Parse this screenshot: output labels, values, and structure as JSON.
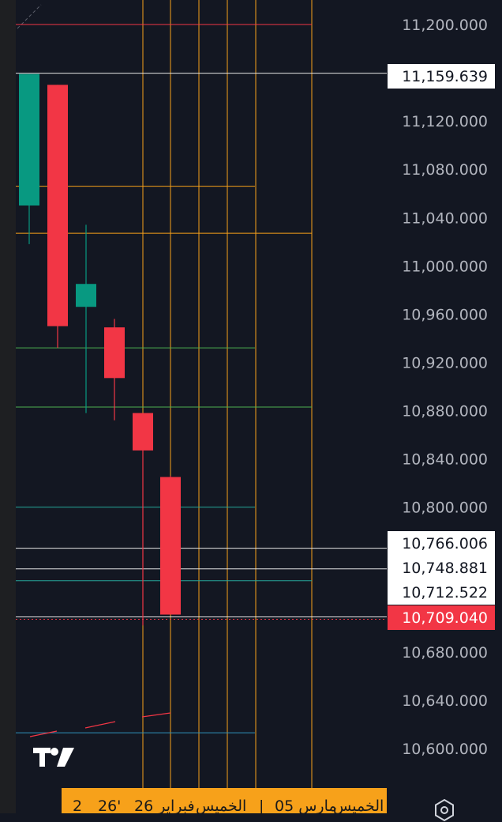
{
  "colors": {
    "background": "#131722",
    "up": "#089981",
    "down": "#f23645",
    "axis_text": "#b2b5be",
    "line_orange": "#f7a11a",
    "line_white": "#e6e6e6",
    "line_red": "#f23645",
    "line_green": "#4caf50",
    "line_teal": "#26a69a",
    "line_blue": "#2f8fb8",
    "badge_white_bg": "#ffffff",
    "badge_white_text": "#131722",
    "badge_red_bg": "#f23645",
    "badge_red_text": "#ffffff"
  },
  "chart_data": {
    "type": "candlestick",
    "y_range": [
      10580,
      11213
    ],
    "y_ticks": [
      "11,200.000",
      "11,120.000",
      "11,080.000",
      "11,040.000",
      "11,000.000",
      "10,960.000",
      "10,920.000",
      "10,880.000",
      "10,840.000",
      "10,800.000",
      "10,680.000",
      "10,640.000",
      "10,600.000"
    ],
    "candles": [
      {
        "open": 11050,
        "high": 11159,
        "low": 11018,
        "close": 11159
      },
      {
        "open": 11150,
        "high": 11150,
        "low": 10932,
        "close": 10950
      },
      {
        "open": 10966,
        "high": 11034,
        "low": 10878,
        "close": 10985
      },
      {
        "open": 10949,
        "high": 10956,
        "low": 10872,
        "close": 10907
      },
      {
        "open": 10878,
        "high": 10878,
        "low": 10702,
        "close": 10847
      },
      {
        "open": 10825,
        "high": 10826,
        "low": 10711,
        "close": 10711
      }
    ],
    "price_badges": [
      {
        "label": "11,159.639",
        "value": 11159.639,
        "style": "white"
      },
      {
        "label": "10,766.006",
        "value": 10766.006,
        "style": "white"
      },
      {
        "label": "10,748.881",
        "value": 10748.881,
        "style": "white"
      },
      {
        "label": "10,712.522",
        "value": 10712.522,
        "style": "white"
      },
      {
        "label": "10,709.040",
        "value": 10709.04,
        "style": "red"
      }
    ],
    "horizontal_lines": [
      {
        "value": 11200,
        "color": "red",
        "extent": "mid"
      },
      {
        "value": 11159.639,
        "color": "white",
        "extent": "full"
      },
      {
        "value": 11066,
        "color": "orange",
        "extent": "short"
      },
      {
        "value": 11027,
        "color": "orange",
        "extent": "mid"
      },
      {
        "value": 10932,
        "color": "green",
        "extent": "short"
      },
      {
        "value": 10883,
        "color": "green",
        "extent": "mid"
      },
      {
        "value": 10800,
        "color": "teal",
        "extent": "short"
      },
      {
        "value": 10766.006,
        "color": "white",
        "extent": "full"
      },
      {
        "value": 10748.881,
        "color": "white",
        "extent": "full"
      },
      {
        "value": 10739,
        "color": "teal",
        "extent": "mid"
      },
      {
        "value": 10709.04,
        "color": "white",
        "extent": "full"
      },
      {
        "value": 10613,
        "color": "blue",
        "extent": "short"
      }
    ],
    "vertical_lines": [
      {
        "position": "candle-5"
      },
      {
        "position": "candle-6"
      },
      {
        "position": "after-6a"
      },
      {
        "position": "after-6b"
      },
      {
        "position": "after-6c"
      },
      {
        "position": "right-edge"
      }
    ],
    "time_labels": [
      "2",
      "26'",
      "فبراير 26",
      "الخميس",
      "|",
      "مارس 05",
      "الخميس"
    ]
  }
}
